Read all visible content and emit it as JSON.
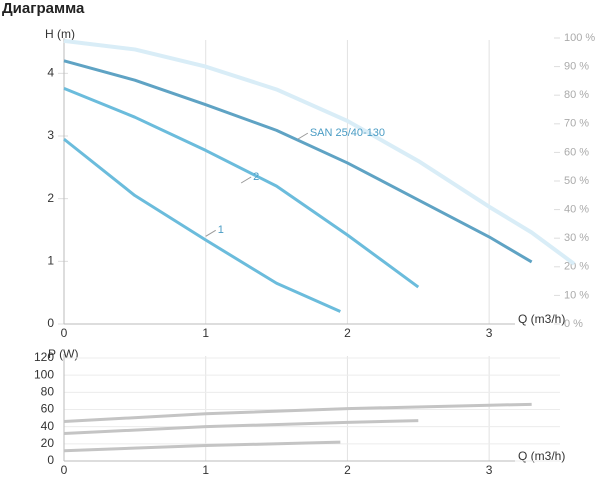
{
  "title": "Диаграмма",
  "chart_data": [
    {
      "type": "line",
      "y_label": "H (m)",
      "x_label": "Q (m3/h)",
      "xlim": [
        0,
        3.5
      ],
      "xticks": [
        0,
        1,
        2,
        3
      ],
      "ylim": [
        0,
        4.5
      ],
      "yticks": [
        0,
        1,
        2,
        3,
        4
      ],
      "grid": "x",
      "y2lim": [
        0,
        100
      ],
      "y2ticks": [
        {
          "value": 0,
          "label": "0 %"
        },
        {
          "value": 10,
          "label": "10 %"
        },
        {
          "value": 20,
          "label": "20 %"
        },
        {
          "value": 30,
          "label": "30 %"
        },
        {
          "value": 40,
          "label": "40 %"
        },
        {
          "value": 50,
          "label": "50 %"
        },
        {
          "value": 60,
          "label": "60 %"
        },
        {
          "value": 70,
          "label": "70 %"
        },
        {
          "value": 80,
          "label": "80 %"
        },
        {
          "value": 90,
          "label": "90 %"
        },
        {
          "value": 100,
          "label": "100 %"
        }
      ],
      "series": [
        {
          "color": "#d9edf7",
          "axis": "y2",
          "x": [
            0,
            0.5,
            1,
            1.5,
            2,
            2.5,
            3,
            3.3,
            3.6
          ],
          "values": [
            99,
            96,
            90,
            82,
            71,
            57,
            41,
            32,
            21
          ]
        },
        {
          "name": "SAN 25/40-130",
          "color": "#5fa3c4",
          "x": [
            0,
            0.5,
            1,
            1.5,
            2,
            2.5,
            3,
            3.3
          ],
          "values": [
            4.2,
            3.89,
            3.5,
            3.09,
            2.57,
            1.98,
            1.39,
            0.99
          ]
        },
        {
          "name": "2",
          "color": "#6bbcdc",
          "x": [
            0,
            0.5,
            1,
            1.5,
            2,
            2.5
          ],
          "values": [
            3.76,
            3.3,
            2.77,
            2.2,
            1.42,
            0.59
          ]
        },
        {
          "name": "1",
          "color": "#6bbcdc",
          "x": [
            0,
            0.5,
            1,
            1.5,
            1.95
          ],
          "values": [
            2.95,
            2.05,
            1.34,
            0.65,
            0.2
          ]
        }
      ]
    },
    {
      "type": "line",
      "y_label": "P (W)",
      "x_label": "Q (m3/h)",
      "xlim": [
        0,
        3.5
      ],
      "xticks": [
        0,
        1,
        2,
        3
      ],
      "ylim": [
        0,
        120
      ],
      "yticks": [
        0,
        20,
        40,
        60,
        80,
        100,
        120
      ],
      "grid": "both",
      "series": [
        {
          "color": "#c4c4c4",
          "x": [
            0,
            1,
            2,
            3,
            3.3
          ],
          "values": [
            46,
            55,
            61,
            65,
            66
          ]
        },
        {
          "color": "#c4c4c4",
          "x": [
            0,
            1,
            2,
            2.5
          ],
          "values": [
            32,
            40,
            45,
            47
          ]
        },
        {
          "color": "#c4c4c4",
          "x": [
            0,
            1,
            1.95
          ],
          "values": [
            12,
            18,
            22
          ]
        }
      ]
    }
  ]
}
